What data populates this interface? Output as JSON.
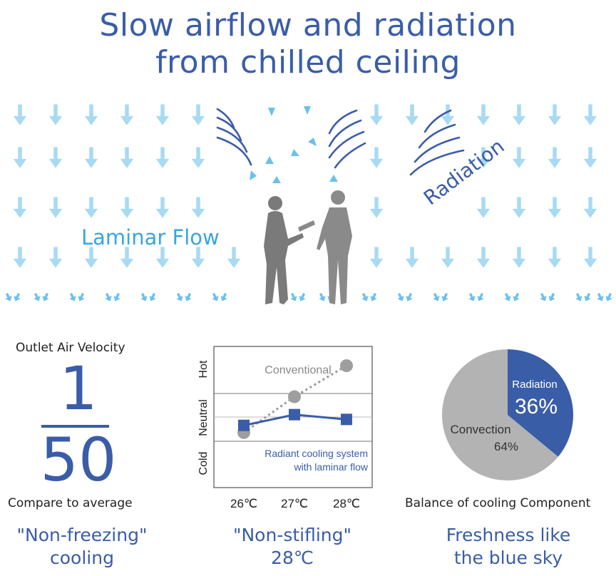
{
  "header": {
    "title_line1": "Slow airflow and radiation",
    "title_line2": "from chilled ceiling"
  },
  "illustration": {
    "laminar_label": "Laminar Flow",
    "radiation_label": "Radiation",
    "icons": [
      "down-arrow-icon",
      "radiation-wave-icon",
      "person-silhouette-icon"
    ]
  },
  "velocity": {
    "title": "Outlet Air Velocity",
    "numerator": "1",
    "denominator": "50",
    "compare_label": "Compare to average",
    "caption_line1": "\"Non-freezing\"",
    "caption_line2": "cooling"
  },
  "comfort": {
    "y_hot": "Hot",
    "y_neutral": "Neutral",
    "y_cold": "Cold",
    "conventional_label": "Conventional",
    "radiant_label_line1": "Radiant cooling system",
    "radiant_label_line2": "with laminar flow",
    "caption_line1": "\"Non-stifling\"",
    "caption_line2": "28℃"
  },
  "balance": {
    "radiation_label": "Radiation",
    "radiation_value": "36%",
    "convection_label": "Convection",
    "convection_value": "64%",
    "caption": "Balance of cooling Component",
    "tagline_line1": "Freshness like",
    "tagline_line2": "the blue sky"
  },
  "colors": {
    "primary_blue": "#3a5da8",
    "light_blue": "#3aa6dd",
    "arrow_blue": "#a8daf3",
    "grey": "#a9a9a9"
  },
  "chart_data": [
    {
      "type": "line",
      "categories": [
        "26℃",
        "27℃",
        "28℃"
      ],
      "y_categories": [
        "Cold",
        "Neutral",
        "Hot"
      ],
      "series": [
        {
          "name": "Conventional",
          "values": [
            -0.65,
            0.85,
            2.15
          ],
          "style": "dotted grey circles"
        },
        {
          "name": "Radiant cooling system with laminar flow",
          "values": [
            -0.35,
            0.1,
            -0.1
          ],
          "style": "solid blue squares"
        }
      ]
    },
    {
      "type": "pie",
      "labels": [
        "Radiation",
        "Convection"
      ],
      "values": [
        36,
        64
      ],
      "colors": [
        "#3a5da8",
        "#b3b3b3"
      ]
    }
  ]
}
